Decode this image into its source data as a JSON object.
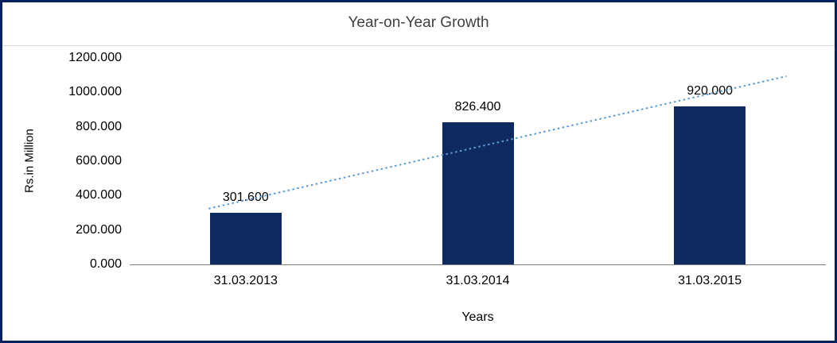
{
  "chart_data": {
    "type": "bar",
    "title": "Year-on-Year Growth",
    "categories": [
      "31.03.2013",
      "31.03.2014",
      "31.03.2015"
    ],
    "values": [
      301.6,
      826.4,
      920.0
    ],
    "value_labels": [
      "301.600",
      "826.400",
      "920.000"
    ],
    "xlabel": "Years",
    "ylabel": "Rs.in Million",
    "ylim": [
      0,
      1200
    ],
    "ytick_step": 200,
    "ytick_labels": [
      "0.000",
      "200.000",
      "400.000",
      "600.000",
      "800.000",
      "1000.000",
      "1200.000"
    ],
    "legend": "none",
    "grid": "off",
    "trendline": "linear-dotted",
    "colors": {
      "bar": "#0e2a5e",
      "trendline": "#5b9bd5",
      "frame_border": "#002060",
      "axis_line": "#808080",
      "title_text": "#404040",
      "divider": "#d9d9d9"
    }
  }
}
